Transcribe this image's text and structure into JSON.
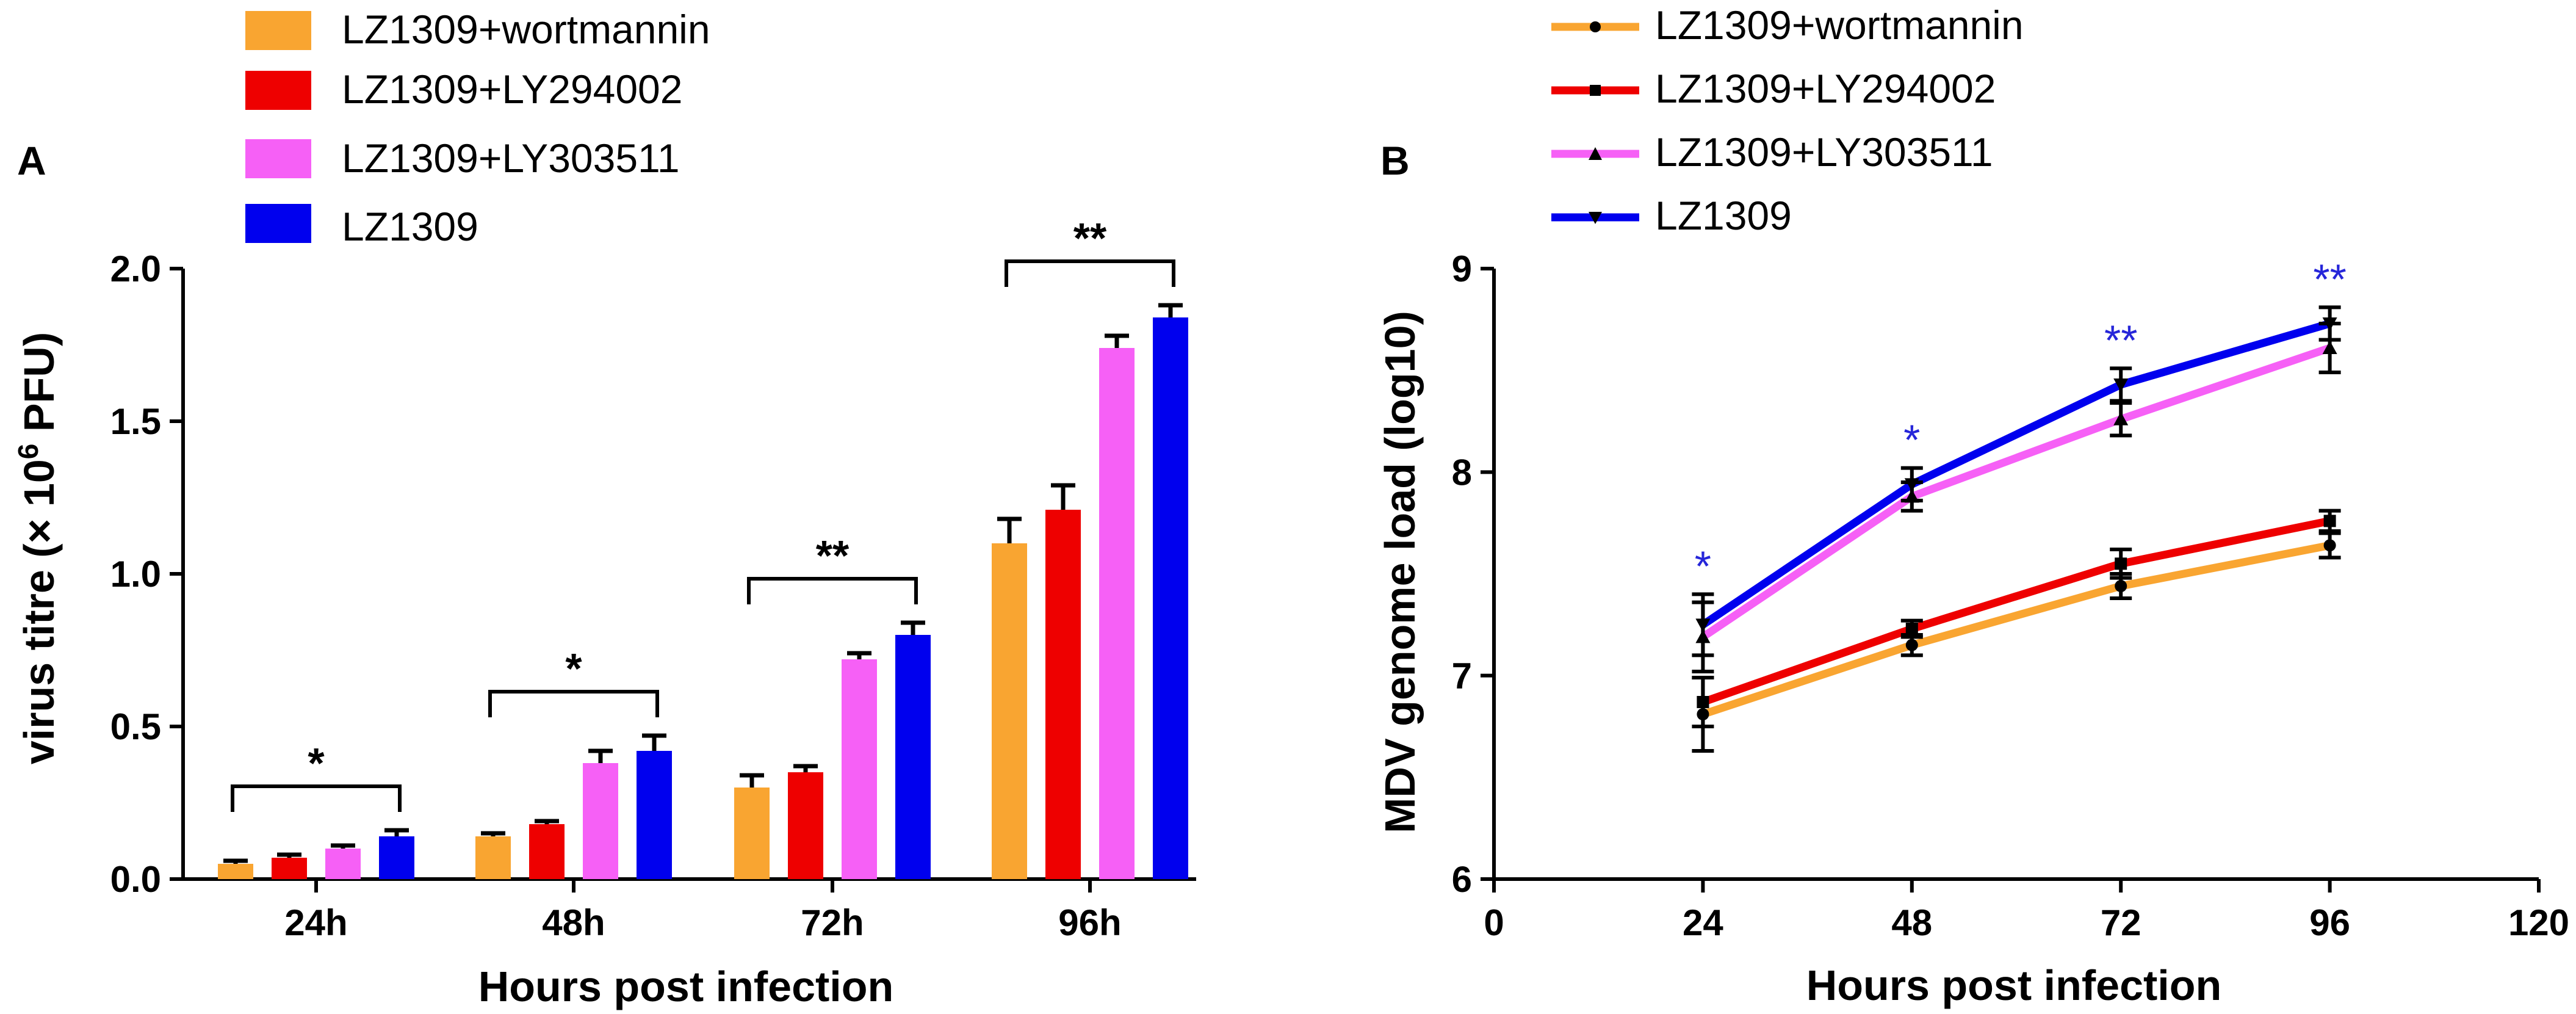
{
  "chart_data": [
    {
      "panel": "A",
      "type": "bar",
      "title": "",
      "xlabel": "Hours post infection",
      "ylabel_parts": [
        "virus titre (× 10",
        "6",
        " PFU)"
      ],
      "categories": [
        "24h",
        "48h",
        "72h",
        "96h"
      ],
      "ylim": [
        0,
        2.0
      ],
      "yticks": [
        "0.0",
        "0.5",
        "1.0",
        "1.5",
        "2.0"
      ],
      "ytick_values": [
        0,
        0.5,
        1.0,
        1.5,
        2.0
      ],
      "legend_position": "top-left",
      "series": [
        {
          "name": "LZ1309+wortmannin",
          "color": "#f9a531",
          "values": [
            0.05,
            0.14,
            0.3,
            1.1
          ],
          "errors": [
            0.01,
            0.01,
            0.04,
            0.08
          ]
        },
        {
          "name": "LZ1309+LY294002",
          "color": "#ee0000",
          "values": [
            0.07,
            0.18,
            0.35,
            1.21
          ],
          "errors": [
            0.01,
            0.01,
            0.02,
            0.08
          ]
        },
        {
          "name": "LZ1309+LY303511",
          "color": "#f660f6",
          "values": [
            0.1,
            0.38,
            0.72,
            1.74
          ],
          "errors": [
            0.01,
            0.04,
            0.02,
            0.04
          ]
        },
        {
          "name": "LZ1309",
          "color": "#0000ee",
          "values": [
            0.14,
            0.42,
            0.8,
            1.84
          ],
          "errors": [
            0.02,
            0.05,
            0.04,
            0.04
          ]
        }
      ],
      "significance": [
        {
          "category": "24h",
          "label": "*"
        },
        {
          "category": "48h",
          "label": "*"
        },
        {
          "category": "72h",
          "label": "**"
        },
        {
          "category": "96h",
          "label": "**"
        }
      ]
    },
    {
      "panel": "B",
      "type": "line",
      "title": "",
      "xlabel": "Hours post infection",
      "ylabel": "MDV genome load (log10)",
      "xlim": [
        0,
        120
      ],
      "ylim": [
        6,
        9
      ],
      "xticks": [
        "0",
        "24",
        "48",
        "72",
        "96",
        "120"
      ],
      "xtick_values": [
        0,
        24,
        48,
        72,
        96,
        120
      ],
      "yticks": [
        "6",
        "7",
        "8",
        "9"
      ],
      "ytick_values": [
        6,
        7,
        8,
        9
      ],
      "x": [
        24,
        48,
        72,
        96
      ],
      "legend_position": "top-left",
      "series": [
        {
          "name": "LZ1309+wortmannin",
          "color": "#f9a531",
          "marker": "circle",
          "values": [
            6.81,
            7.15,
            7.44,
            7.64
          ],
          "errors": [
            0.18,
            0.05,
            0.06,
            0.06
          ]
        },
        {
          "name": "LZ1309+LY294002",
          "color": "#ee0000",
          "marker": "square",
          "values": [
            6.87,
            7.23,
            7.55,
            7.76
          ],
          "errors": [
            0.12,
            0.04,
            0.07,
            0.05
          ]
        },
        {
          "name": "LZ1309+LY303511",
          "color": "#f660f6",
          "marker": "triangle-up",
          "values": [
            7.19,
            7.88,
            8.26,
            8.61
          ],
          "errors": [
            0.17,
            0.07,
            0.08,
            0.12
          ]
        },
        {
          "name": "LZ1309",
          "color": "#0000ee",
          "marker": "triangle-down",
          "values": [
            7.25,
            7.94,
            8.43,
            8.73
          ],
          "errors": [
            0.15,
            0.08,
            0.08,
            0.08
          ]
        }
      ],
      "significance": [
        {
          "x": 24,
          "label": "*"
        },
        {
          "x": 48,
          "label": "*"
        },
        {
          "x": 72,
          "label": "**"
        },
        {
          "x": 96,
          "label": "**"
        }
      ]
    }
  ]
}
